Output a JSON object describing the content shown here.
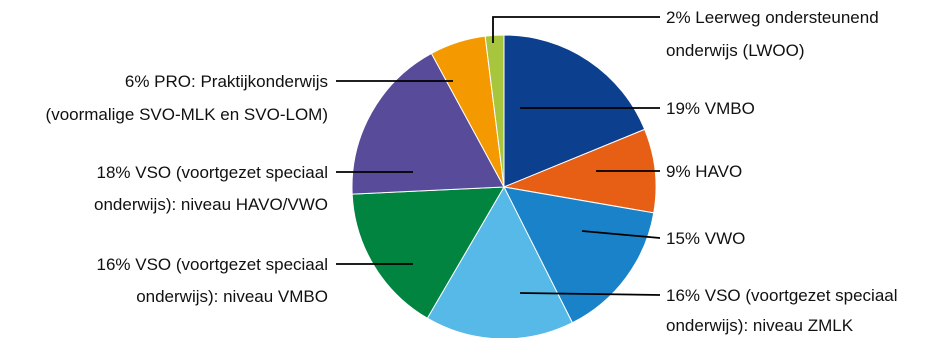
{
  "chart_data": {
    "type": "pie",
    "title": "",
    "series": [
      {
        "label": "VMBO",
        "value": 19,
        "color": "#0d3f8f",
        "text": [
          "19% VMBO"
        ]
      },
      {
        "label": "HAVO",
        "value": 9,
        "color": "#e65f14",
        "text": [
          "9% HAVO"
        ]
      },
      {
        "label": "VWO",
        "value": 15,
        "color": "#1a82c8",
        "text": [
          "15% VWO"
        ]
      },
      {
        "label": "VSO niveau ZMLK",
        "value": 16,
        "color": "#56b9e7",
        "text": [
          "16% VSO (voortgezet speciaal",
          "onderwijs): niveau ZMLK"
        ]
      },
      {
        "label": "VSO niveau VMBO",
        "value": 16,
        "color": "#00843f",
        "text": [
          "16% VSO (voortgezet speciaal",
          "onderwijs): niveau VMBO"
        ]
      },
      {
        "label": "VSO niveau HAVO/VWO",
        "value": 18,
        "color": "#574b9a",
        "text": [
          "18% VSO (voortgezet speciaal",
          "onderwijs): niveau HAVO/VWO"
        ]
      },
      {
        "label": "PRO",
        "value": 6,
        "color": "#f49a00",
        "text": [
          "6% PRO: Praktijkonderwijs",
          "(voormalige SVO-MLK en SVO-LOM)"
        ]
      },
      {
        "label": "LWOO",
        "value": 2,
        "color": "#a8c63d",
        "text": [
          "2% Leerweg ondersteunend",
          "onderwijs (LWOO)"
        ]
      }
    ]
  }
}
